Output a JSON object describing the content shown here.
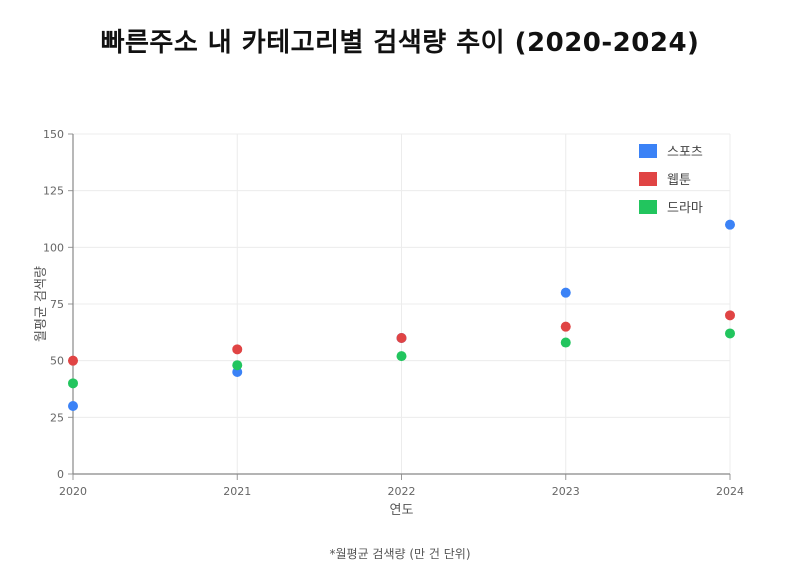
{
  "chart_data": {
    "type": "scatter",
    "title": "빠른주소 내 카테고리별 검색량 추이 (2020-2024)",
    "xlabel": "연도",
    "ylabel": "월평균 검색량",
    "x": [
      "2020",
      "2021",
      "2022",
      "2023",
      "2024"
    ],
    "ylim": [
      0,
      150
    ],
    "yticks": [
      0,
      25,
      50,
      75,
      100,
      125,
      150
    ],
    "grid": true,
    "legend_position": "top-right",
    "series": [
      {
        "name": "스포츠",
        "color": "#3b82f6",
        "values": [
          30,
          45,
          60,
          80,
          110
        ]
      },
      {
        "name": "웹툰",
        "color": "#e04444",
        "values": [
          50,
          55,
          60,
          65,
          70
        ]
      },
      {
        "name": "드라마",
        "color": "#22c55e",
        "values": [
          40,
          48,
          52,
          58,
          62
        ]
      }
    ]
  },
  "footnote": "*월평균 검색량 (만 건 단위)"
}
